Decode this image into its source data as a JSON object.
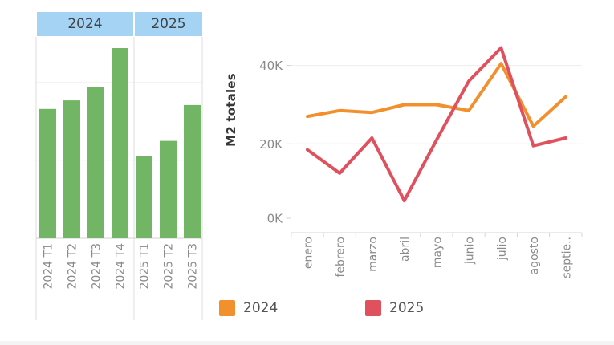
{
  "chart_data": [
    {
      "type": "bar",
      "group_headers": [
        "2024",
        "2025"
      ],
      "categories": [
        "2024 T1",
        "2024 T2",
        "2024 T3",
        "2024 T4",
        "2025 T1",
        "2025 T2",
        "2025 T3"
      ],
      "values": [
        83000,
        88500,
        97000,
        122000,
        52500,
        62500,
        85500
      ],
      "ylim": [
        0,
        128000
      ],
      "gridline_values": [
        50000,
        100000
      ],
      "bar_color": "#72b665",
      "header_bg": "#a5d3f3",
      "grid": "horizontal",
      "y_axis_labels_visible": false
    },
    {
      "type": "line",
      "ylabel": "M2 totales",
      "x": [
        "enero",
        "febrero",
        "marzo",
        "abril",
        "mayo",
        "junio",
        "julio",
        "agosto",
        "septie.."
      ],
      "y_tick_labels": [
        "0K",
        "20K",
        "40K"
      ],
      "y_tick_values": [
        0,
        20000,
        40000
      ],
      "ylim": [
        0,
        48000
      ],
      "grid": "horizontal",
      "series": [
        {
          "name": "2024",
          "color": "#f2902d",
          "values": [
            27000,
            28500,
            28000,
            30000,
            30000,
            28500,
            40500,
            24500,
            32000
          ]
        },
        {
          "name": "2025",
          "color": "#e0515e",
          "values": [
            18500,
            12500,
            21500,
            5500,
            21000,
            36000,
            44500,
            19500,
            21500
          ]
        }
      ],
      "legend": [
        {
          "label": "2024",
          "color": "#f2902d"
        },
        {
          "label": "2025",
          "color": "#e0515e"
        }
      ],
      "legend_position": "bottom"
    }
  ]
}
